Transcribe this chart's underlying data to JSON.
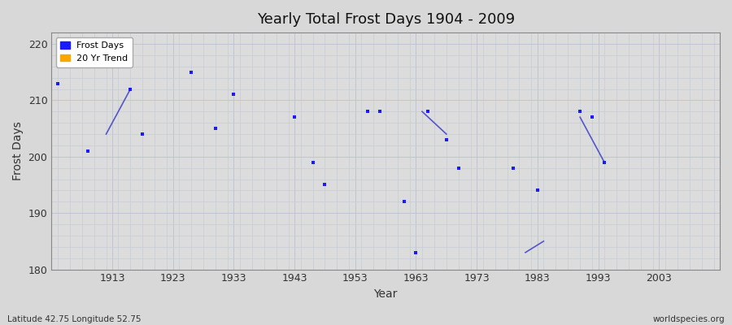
{
  "title": "Yearly Total Frost Days 1904 - 2009",
  "xlabel": "Year",
  "ylabel": "Frost Days",
  "footnote_left": "Latitude 42.75 Longitude 52.75",
  "footnote_right": "worldspecies.org",
  "xlim": [
    1903,
    2013
  ],
  "ylim": [
    180,
    222
  ],
  "yticks": [
    180,
    190,
    200,
    210,
    220
  ],
  "xticks": [
    1913,
    1923,
    1933,
    1943,
    1953,
    1963,
    1973,
    1983,
    1993,
    2003
  ],
  "bg_color": "#d8d8d8",
  "plot_bg_color": "#dcdcdc",
  "grid_color": "#c0c8d8",
  "scatter_color": "#1a1aff",
  "trend_color": "#5555cc",
  "frost_days_x": [
    1904,
    1909,
    1916,
    1918,
    1926,
    1930,
    1933,
    1943,
    1946,
    1948,
    1955,
    1957,
    1961,
    1963,
    1965,
    1968,
    1970,
    1979,
    1983,
    1990,
    1992,
    1994
  ],
  "frost_days_y": [
    213,
    201,
    212,
    204,
    215,
    205,
    211,
    207,
    199,
    195,
    208,
    208,
    192,
    183,
    208,
    203,
    198,
    198,
    194,
    208,
    207,
    199
  ],
  "trend_segments": [
    {
      "x": [
        1912,
        1916
      ],
      "y": [
        204,
        212
      ]
    },
    {
      "x": [
        1964,
        1968
      ],
      "y": [
        208,
        204
      ]
    },
    {
      "x": [
        1981,
        1984
      ],
      "y": [
        183,
        185
      ]
    },
    {
      "x": [
        1990,
        1994
      ],
      "y": [
        207,
        199
      ]
    }
  ],
  "minor_grid_color": "#c8cfd8",
  "minor_per_major": 5
}
